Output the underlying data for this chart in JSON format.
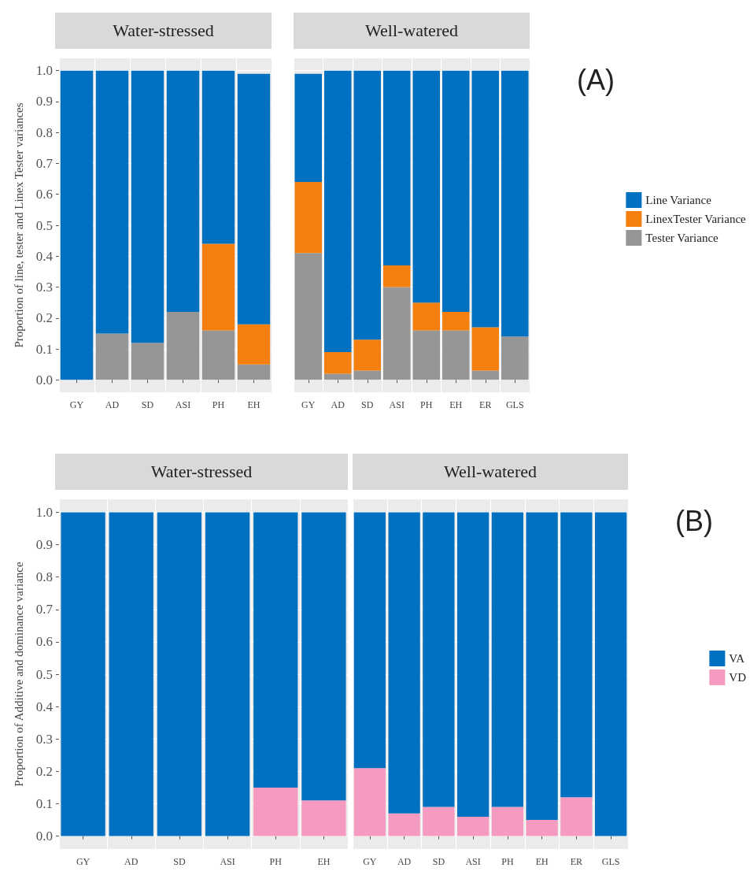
{
  "chart_data": [
    {
      "type": "bar",
      "title": "Water-stressed",
      "ylabel": "Proportion of line, tester and Linex Tester variances",
      "categories": [
        "GY",
        "AD",
        "SD",
        "ASI",
        "PH",
        "EH"
      ],
      "stacked": true,
      "grid": true,
      "legend": false,
      "ylim": [
        -0.04,
        1.04
      ],
      "yticks": [
        {
          "value": 0,
          "label": "0.0"
        },
        {
          "value": 0.1,
          "label": "0.1"
        },
        {
          "value": 0.2,
          "label": "0.2"
        },
        {
          "value": 0.3,
          "label": "0.3"
        },
        {
          "value": 0.4,
          "label": "0.4"
        },
        {
          "value": 0.5,
          "label": "0.5"
        },
        {
          "value": 0.6,
          "label": "0.6"
        },
        {
          "value": 0.7,
          "label": "0.7"
        },
        {
          "value": 0.8,
          "label": "0.8"
        },
        {
          "value": 0.9,
          "label": "0.9"
        },
        {
          "value": 1,
          "label": "1.0"
        }
      ],
      "series": [
        {
          "color": "#969696",
          "values": [
            0,
            0.15,
            0.12,
            0.22,
            0.16,
            0.05
          ]
        },
        {
          "color": "#f5800f",
          "values": [
            0,
            0,
            0,
            0,
            0.28,
            0.13
          ]
        },
        {
          "color": "#0070c0",
          "values": [
            1.0,
            0.85,
            0.88,
            0.78,
            0.56,
            0.81
          ]
        }
      ]
    },
    {
      "type": "bar",
      "title": "Well-watered",
      "categories": [
        "GY",
        "AD",
        "SD",
        "ASI",
        "PH",
        "EH",
        "ER",
        "GLS"
      ],
      "stacked": true,
      "grid": true,
      "legend": "right",
      "tick_labels": "x",
      "annotations": [
        "(A)"
      ],
      "ylim": [
        -0.04,
        1.04
      ],
      "yticks": [
        0,
        0.1,
        0.2,
        0.3,
        0.4,
        0.5,
        0.6,
        0.7,
        0.8,
        0.9,
        1
      ],
      "series": [
        {
          "name": "Tester Variance",
          "color": "#969696",
          "values": [
            0.41,
            0.02,
            0.03,
            0.3,
            0.16,
            0.16,
            0.03,
            0.14
          ]
        },
        {
          "name": "LinexTester Variance",
          "color": "#f5800f",
          "values": [
            0.23,
            0.07,
            0.1,
            0.07,
            0.09,
            0.06,
            0.14,
            0
          ]
        },
        {
          "name": "Line Variance",
          "color": "#0070c0",
          "values": [
            0.35,
            0.91,
            0.87,
            0.63,
            0.75,
            0.78,
            0.83,
            0.86
          ]
        }
      ]
    },
    {
      "type": "bar",
      "title": "Water-stressed",
      "ylabel": "Proportion of Additive and dominance variance",
      "categories": [
        "GY",
        "AD",
        "SD",
        "ASI",
        "PH",
        "EH"
      ],
      "stacked": true,
      "grid": true,
      "legend": false,
      "ylim": [
        -0.04,
        1.04
      ],
      "yticks": [
        {
          "value": 0,
          "label": "0.0"
        },
        {
          "value": 0.1,
          "label": "0.1"
        },
        {
          "value": 0.2,
          "label": "0.2"
        },
        {
          "value": 0.3,
          "label": "0.3"
        },
        {
          "value": 0.4,
          "label": "0.4"
        },
        {
          "value": 0.5,
          "label": "0.5"
        },
        {
          "value": 0.6,
          "label": "0.6"
        },
        {
          "value": 0.7,
          "label": "0.7"
        },
        {
          "value": 0.8,
          "label": "0.8"
        },
        {
          "value": 0.9,
          "label": "0.9"
        },
        {
          "value": 1,
          "label": "1.0"
        }
      ],
      "series": [
        {
          "color": "#f59ac0",
          "values": [
            0,
            0,
            0,
            0,
            0.15,
            0.11
          ]
        },
        {
          "color": "#0070c0",
          "values": [
            1.0,
            1.0,
            1.0,
            1.0,
            0.85,
            0.89
          ]
        }
      ]
    },
    {
      "type": "bar",
      "title": "Well-watered",
      "categories": [
        "GY",
        "AD",
        "SD",
        "ASI",
        "PH",
        "EH",
        "ER",
        "GLS"
      ],
      "stacked": true,
      "grid": true,
      "legend": "right",
      "tick_labels": "x",
      "annotations": [
        "(B)"
      ],
      "ylim": [
        -0.04,
        1.04
      ],
      "yticks": [
        0,
        0.1,
        0.2,
        0.3,
        0.4,
        0.5,
        0.6,
        0.7,
        0.8,
        0.9,
        1
      ],
      "series": [
        {
          "name": "VD",
          "color": "#f59ac0",
          "values": [
            0.21,
            0.07,
            0.09,
            0.06,
            0.09,
            0.05,
            0.12,
            0
          ]
        },
        {
          "name": "VA",
          "color": "#0070c0",
          "values": [
            0.79,
            0.93,
            0.91,
            0.94,
            0.91,
            0.95,
            0.88,
            1.0
          ]
        }
      ]
    }
  ]
}
